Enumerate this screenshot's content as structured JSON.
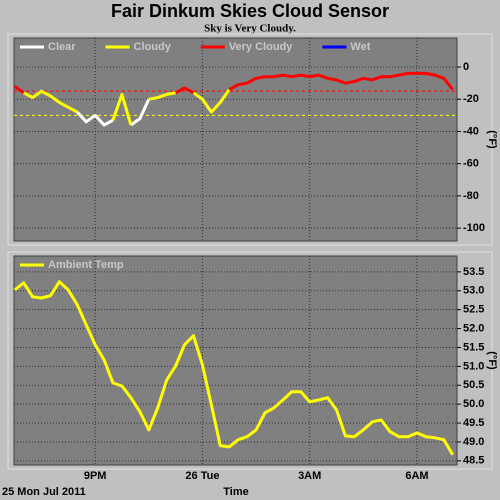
{
  "chart_data": [
    {
      "type": "line",
      "title": "Fair Dinkum Skies Cloud Sensor",
      "subtitle": "Sky is Very Cloudy.",
      "y_label": "(°F)",
      "x": [
        18.75,
        19.0,
        19.25,
        19.5,
        19.75,
        20.0,
        20.25,
        20.5,
        20.75,
        21.0,
        21.25,
        21.5,
        21.75,
        22.0,
        22.25,
        22.5,
        22.75,
        23.0,
        23.25,
        23.5,
        23.75,
        24.0,
        24.25,
        24.5,
        24.75,
        25.0,
        25.25,
        25.5,
        25.75,
        26.0,
        26.25,
        26.5,
        26.75,
        27.0,
        27.25,
        27.5,
        27.75,
        28.0,
        28.25,
        28.5,
        28.75,
        29.0,
        29.25,
        29.5,
        29.75,
        30.0,
        30.25,
        30.5,
        30.75,
        31.0
      ],
      "series": [
        {
          "name": "Clear",
          "color": "#ffffff",
          "values": [
            null,
            null,
            null,
            null,
            null,
            null,
            null,
            -28,
            -34,
            -30,
            -36,
            -33,
            null,
            -36,
            -32,
            -20,
            null,
            null,
            null,
            null,
            null,
            null,
            null,
            null,
            null,
            null,
            null,
            null,
            null,
            null,
            null,
            null,
            null,
            null,
            null,
            null,
            null,
            null,
            null,
            null,
            null,
            null,
            null,
            null,
            null,
            null,
            null,
            null,
            null,
            null
          ]
        },
        {
          "name": "Cloudy",
          "color": "#ffff00",
          "values": [
            null,
            -16,
            -19,
            -15,
            -18,
            -22,
            -25,
            -28,
            null,
            null,
            null,
            -33,
            -17,
            -36,
            null,
            -20,
            -19,
            -17,
            -16,
            null,
            -16,
            -20,
            -28,
            -22,
            -14,
            null,
            null,
            null,
            null,
            null,
            null,
            null,
            null,
            null,
            null,
            null,
            null,
            null,
            null,
            null,
            null,
            null,
            null,
            null,
            null,
            null,
            null,
            null,
            null,
            null
          ]
        },
        {
          "name": "Very Cloudy",
          "color": "#ff0000",
          "values": [
            -12,
            -16,
            null,
            null,
            null,
            null,
            null,
            null,
            null,
            null,
            null,
            null,
            null,
            null,
            null,
            null,
            null,
            null,
            -16,
            -13,
            -16,
            null,
            null,
            null,
            -14,
            -11,
            -10,
            -7,
            -6,
            -6,
            -5,
            -6,
            -5,
            -6,
            -5,
            -7,
            -8,
            -10,
            -9,
            -7,
            -8,
            -6,
            -6,
            -5,
            -4,
            -4,
            -4,
            -5,
            -7,
            -14
          ]
        },
        {
          "name": "Wet",
          "color": "#0000ff",
          "values": [
            null,
            null,
            null,
            null,
            null,
            null,
            null,
            null,
            null,
            null,
            null,
            null,
            null,
            null,
            null,
            null,
            null,
            null,
            null,
            null,
            null,
            null,
            null,
            null,
            null,
            null,
            null,
            null,
            null,
            null,
            null,
            null,
            null,
            null,
            null,
            null,
            null,
            null,
            null,
            null,
            null,
            null,
            null,
            null,
            null,
            null,
            null,
            null,
            null,
            null
          ]
        }
      ],
      "thresholds": [
        {
          "value": -15,
          "color": "#ff0000"
        },
        {
          "value": -30,
          "color": "#ffff00"
        }
      ],
      "xlim": [
        18.73,
        31.12
      ],
      "xticks": [
        21,
        24,
        27,
        30
      ],
      "ylim": [
        -108,
        18
      ],
      "yticks": [
        0,
        -20,
        -40,
        -60,
        -80,
        -100
      ],
      "grid": true
    },
    {
      "type": "line",
      "y_label": "(°F)",
      "x_label": "Time",
      "date_label": "25 Mon Jul 2011",
      "x": [
        18.75,
        19.0,
        19.25,
        19.5,
        19.75,
        20.0,
        20.25,
        20.5,
        20.75,
        21.0,
        21.25,
        21.5,
        21.75,
        22.0,
        22.25,
        22.5,
        22.75,
        23.0,
        23.25,
        23.5,
        23.75,
        24.0,
        24.25,
        24.5,
        24.75,
        25.0,
        25.25,
        25.5,
        25.75,
        26.0,
        26.25,
        26.5,
        26.75,
        27.0,
        27.25,
        27.5,
        27.75,
        28.0,
        28.25,
        28.5,
        28.75,
        29.0,
        29.25,
        29.5,
        29.75,
        30.0,
        30.25,
        30.5,
        30.75,
        31.0
      ],
      "series": [
        {
          "name": "Ambient Temp",
          "color": "#ffff00",
          "values": [
            53.02,
            53.21,
            52.84,
            52.81,
            52.87,
            53.24,
            53.02,
            52.63,
            52.1,
            51.57,
            51.17,
            50.56,
            50.48,
            50.17,
            49.8,
            49.32,
            49.9,
            50.64,
            51.01,
            51.57,
            51.81,
            51.04,
            49.98,
            48.9,
            48.87,
            49.06,
            49.14,
            49.32,
            49.77,
            49.9,
            50.11,
            50.33,
            50.33,
            50.06,
            50.11,
            50.17,
            49.85,
            49.16,
            49.14,
            49.32,
            49.53,
            49.58,
            49.27,
            49.14,
            49.14,
            49.24,
            49.14,
            49.11,
            49.06,
            48.66
          ]
        }
      ],
      "xlim": [
        18.73,
        31.12
      ],
      "xticks": [
        {
          "value": 21,
          "label": "9PM"
        },
        {
          "value": 24,
          "label": "26 Tue"
        },
        {
          "value": 27,
          "label": "3AM"
        },
        {
          "value": 30,
          "label": "6AM"
        }
      ],
      "ylim": [
        48.39,
        53.92
      ],
      "yticks": [
        53.5,
        {
          "value": 53,
          "label": "53.0"
        },
        52.5,
        {
          "value": 52,
          "label": "52.0"
        },
        51.5,
        {
          "value": 51,
          "label": "51.0"
        },
        50.5,
        {
          "value": 50,
          "label": "50.0"
        },
        49.5,
        {
          "value": 49,
          "label": "49.0"
        },
        48.5
      ],
      "grid": true
    }
  ]
}
